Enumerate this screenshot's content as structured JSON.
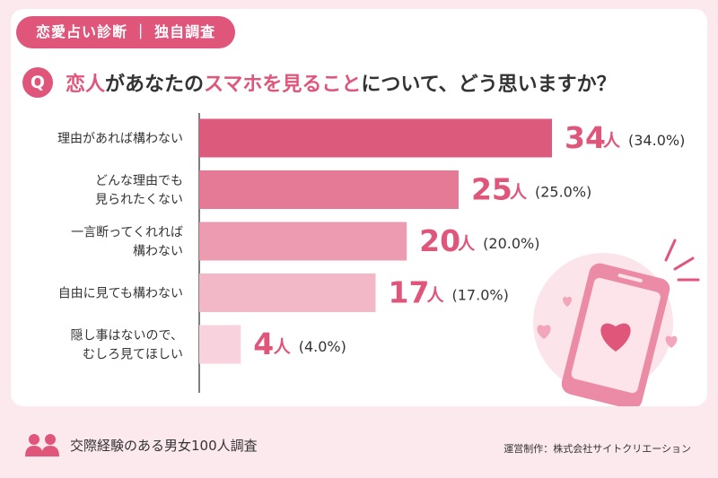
{
  "header": {
    "badge": "恋愛占い診断 ｜ 独自調査",
    "q_icon": "Q",
    "question_parts": [
      {
        "text": "恋人",
        "hl": true
      },
      {
        "text": "があなたの",
        "hl": false
      },
      {
        "text": "スマホを見ること",
        "hl": true
      },
      {
        "text": "について、どう思いますか？",
        "hl": false
      }
    ]
  },
  "chart_data": {
    "type": "bar",
    "orientation": "horizontal",
    "categories": [
      [
        "理由があれば構わない"
      ],
      [
        "どんな理由でも",
        "見られたくない"
      ],
      [
        "一言断ってくれれば",
        "構わない"
      ],
      [
        "自由に見ても構わない"
      ],
      [
        "隠し事はないので、",
        "むしろ見てほしい"
      ]
    ],
    "values": [
      34,
      25,
      20,
      17,
      4
    ],
    "value_unit": "人",
    "percent_labels": [
      "(34.0%)",
      "(25.0%)",
      "(20.0%)",
      "(17.0%)",
      "(4.0%)"
    ],
    "bar_colors": [
      "#dc5a7c",
      "#e57a96",
      "#ec9bb0",
      "#f3b8c7",
      "#f8d3dd"
    ],
    "xlim": [
      0,
      34
    ]
  },
  "colors": {
    "accent": "#e0557a",
    "text": "#333333",
    "footer_bg": "#fbe9ee"
  },
  "illustration": {
    "icon": "smartphone-heart-icon"
  },
  "footer": {
    "icon": "people-icon",
    "survey_text": "交際経験のある男女100人調査",
    "credit": "運営制作：株式会社サイトクリエーション"
  }
}
